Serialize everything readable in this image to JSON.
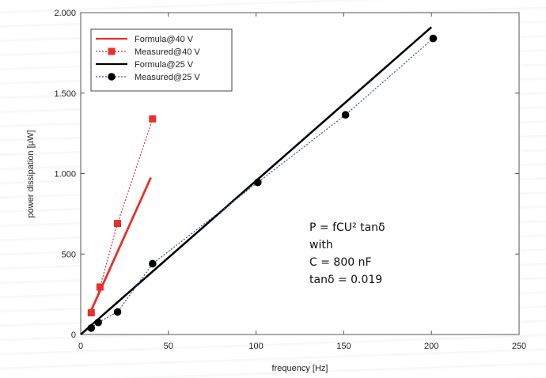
{
  "chart_data": {
    "type": "line",
    "xlabel": "frequency [Hz]",
    "ylabel": "power dissipation [µW]",
    "xlim": [
      0,
      250
    ],
    "ylim": [
      0,
      2000
    ],
    "xticks": [
      0,
      50,
      100,
      150,
      200,
      250
    ],
    "xtick_labels": [
      "0",
      "50",
      "100",
      "150",
      "200",
      "250"
    ],
    "yticks": [
      0,
      500,
      1000,
      1500,
      2000
    ],
    "ytick_labels": [
      "0",
      "500",
      "1.000",
      "1.500",
      "2.000"
    ],
    "grid": false,
    "legend_position": "top-left",
    "series": [
      {
        "name": "Formula@40 V",
        "style": "solid",
        "marker": "none",
        "color": "#e8302a",
        "x": [
          6,
          40
        ],
        "y": [
          150,
          975
        ]
      },
      {
        "name": "Measured@40 V",
        "style": "dotted",
        "marker": "square",
        "color": "#e8302a",
        "x": [
          6,
          11,
          21,
          41
        ],
        "y": [
          135,
          295,
          690,
          1340
        ]
      },
      {
        "name": "Formula@25 V",
        "style": "solid",
        "marker": "none",
        "color": "#000000",
        "x": [
          0,
          200
        ],
        "y": [
          0,
          1910
        ]
      },
      {
        "name": "Measured@25 V",
        "style": "dotted",
        "marker": "circle",
        "color": "#000000",
        "line_color": "#3a4fb0",
        "x": [
          6,
          10,
          21,
          41,
          101,
          151,
          201
        ],
        "y": [
          40,
          75,
          140,
          440,
          945,
          1365,
          1840
        ]
      }
    ],
    "annotation": [
      "P = fCU² tanδ",
      "with",
      "C = 800 nF",
      "tanδ = 0.019"
    ]
  }
}
